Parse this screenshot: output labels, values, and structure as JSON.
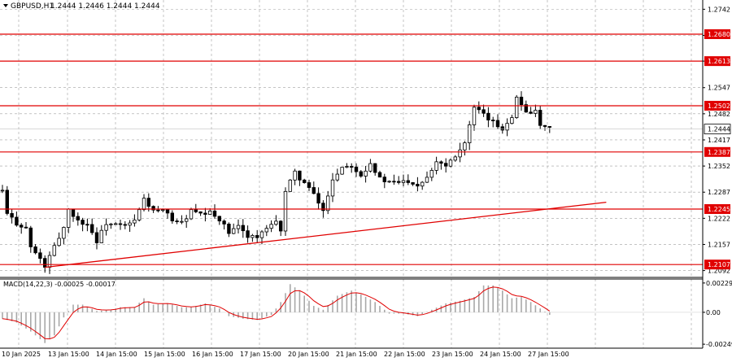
{
  "colors": {
    "background": "#ffffff",
    "grid": "#a0a0a0",
    "candle": "#000000",
    "level": "#e00000",
    "trendline": "#e00000",
    "macd_signal": "#e00000",
    "macd_hist": "#a8a8a8",
    "level_label_bg": "#e00000",
    "price_label_bg": "#ffffff"
  },
  "chart_data": [
    {
      "type": "candlestick",
      "header": {
        "symbol": "GBPUSD,H1",
        "ohlc": "1.2444 1.2446 1.2444 1.2444"
      },
      "grid": true,
      "ylim": [
        1.2075,
        1.2765
      ],
      "y_ticks": [
        "1.2742",
        "1.2677",
        "1.2613",
        "1.2547",
        "1.2482",
        "1.2417",
        "1.2352",
        "1.2287",
        "1.2222",
        "1.2157",
        "1.2092"
      ],
      "x_ticks": [
        "10 Jan 2025",
        "13 Jan 15:00",
        "14 Jan 15:00",
        "15 Jan 15:00",
        "16 Jan 15:00",
        "17 Jan 15:00",
        "20 Jan 15:00",
        "21 Jan 15:00",
        "22 Jan 15:00",
        "23 Jan 15:00",
        "24 Jan 15:00",
        "27 Jan 15:00"
      ],
      "current_price": "1.2444",
      "levels": [
        {
          "label": "1.2680",
          "value": 1.268
        },
        {
          "label": "1.2613",
          "value": 1.2613
        },
        {
          "label": "1.2502",
          "value": 1.2502
        },
        {
          "label": "1.2387",
          "value": 1.2387
        },
        {
          "label": "1.2245",
          "value": 1.2245
        },
        {
          "label": "1.2107",
          "value": 1.2107
        }
      ],
      "trendline": {
        "from": {
          "bar": 9,
          "price": 1.21
        },
        "to": {
          "bar": 128,
          "price": 1.2262
        }
      },
      "path_anchors": [
        [
          0,
          1.229
        ],
        [
          1,
          1.2232
        ],
        [
          3,
          1.221
        ],
        [
          5,
          1.2197
        ],
        [
          6,
          1.215
        ],
        [
          8,
          1.212
        ],
        [
          9,
          1.2102
        ],
        [
          11,
          1.215
        ],
        [
          13,
          1.22
        ],
        [
          14,
          1.2245
        ],
        [
          16,
          1.2215
        ],
        [
          18,
          1.2208
        ],
        [
          20,
          1.2165
        ],
        [
          22,
          1.221
        ],
        [
          24,
          1.2205
        ],
        [
          26,
          1.2202
        ],
        [
          28,
          1.2215
        ],
        [
          30,
          1.227
        ],
        [
          32,
          1.224
        ],
        [
          34,
          1.224
        ],
        [
          36,
          1.222
        ],
        [
          38,
          1.221
        ],
        [
          40,
          1.224
        ],
        [
          42,
          1.223
        ],
        [
          44,
          1.2235
        ],
        [
          46,
          1.222
        ],
        [
          48,
          1.2185
        ],
        [
          50,
          1.22
        ],
        [
          52,
          1.218
        ],
        [
          54,
          1.2175
        ],
        [
          56,
          1.2195
        ],
        [
          58,
          1.221
        ],
        [
          59,
          1.2195
        ],
        [
          60,
          1.229
        ],
        [
          62,
          1.2335
        ],
        [
          64,
          1.231
        ],
        [
          66,
          1.228
        ],
        [
          68,
          1.224
        ],
        [
          70,
          1.232
        ],
        [
          72,
          1.235
        ],
        [
          74,
          1.2355
        ],
        [
          76,
          1.233
        ],
        [
          78,
          1.236
        ],
        [
          80,
          1.232
        ],
        [
          82,
          1.231
        ],
        [
          84,
          1.2312
        ],
        [
          86,
          1.2316
        ],
        [
          88,
          1.2305
        ],
        [
          90,
          1.2326
        ],
        [
          92,
          1.2365
        ],
        [
          94,
          1.2355
        ],
        [
          96,
          1.238
        ],
        [
          98,
          1.241
        ],
        [
          100,
          1.2495
        ],
        [
          102,
          1.2478
        ],
        [
          104,
          1.246
        ],
        [
          106,
          1.2445
        ],
        [
          108,
          1.2478
        ],
        [
          109,
          1.252
        ],
        [
          111,
          1.249
        ],
        [
          113,
          1.2485
        ],
        [
          114,
          1.245
        ],
        [
          116,
          1.2444
        ]
      ]
    },
    {
      "type": "histogram+line",
      "indicator": "MACD",
      "header": "MACD(14,22,3) -0.00025 -0.00017",
      "ylim": [
        -0.0028,
        0.0026
      ],
      "y_ticks": [
        "0.00229",
        "0.00",
        "-0.00249"
      ],
      "macd_anchors": [
        [
          0,
          -0.0005
        ],
        [
          3,
          -0.0008
        ],
        [
          6,
          -0.0015
        ],
        [
          9,
          -0.0024
        ],
        [
          11,
          -0.0018
        ],
        [
          13,
          -0.0004
        ],
        [
          15,
          0.0006
        ],
        [
          17,
          0.0006
        ],
        [
          20,
          0.0001
        ],
        [
          23,
          0.0002
        ],
        [
          25,
          0.0004
        ],
        [
          28,
          0.0004
        ],
        [
          30,
          0.0011
        ],
        [
          32,
          0.0006
        ],
        [
          35,
          0.0007
        ],
        [
          38,
          0.0004
        ],
        [
          40,
          0.0004
        ],
        [
          43,
          0.0007
        ],
        [
          46,
          0.0003
        ],
        [
          48,
          -0.0003
        ],
        [
          51,
          -0.0005
        ],
        [
          54,
          -0.0006
        ],
        [
          57,
          -0.0002
        ],
        [
          59,
          0.0008
        ],
        [
          61,
          0.0022
        ],
        [
          63,
          0.0017
        ],
        [
          66,
          0.0005
        ],
        [
          68,
          0.0002
        ],
        [
          71,
          0.0013
        ],
        [
          74,
          0.0017
        ],
        [
          76,
          0.0014
        ],
        [
          79,
          0.0008
        ],
        [
          82,
          -0.0001
        ],
        [
          85,
          -0.0001
        ],
        [
          88,
          -0.0003
        ],
        [
          91,
          0.0002
        ],
        [
          94,
          0.0007
        ],
        [
          97,
          0.0009
        ],
        [
          100,
          0.0012
        ],
        [
          102,
          0.0021
        ],
        [
          104,
          0.0021
        ],
        [
          106,
          0.0017
        ],
        [
          108,
          0.0011
        ],
        [
          110,
          0.0012
        ],
        [
          112,
          0.0008
        ],
        [
          114,
          0.0003
        ],
        [
          116,
          -0.0002
        ]
      ]
    }
  ]
}
